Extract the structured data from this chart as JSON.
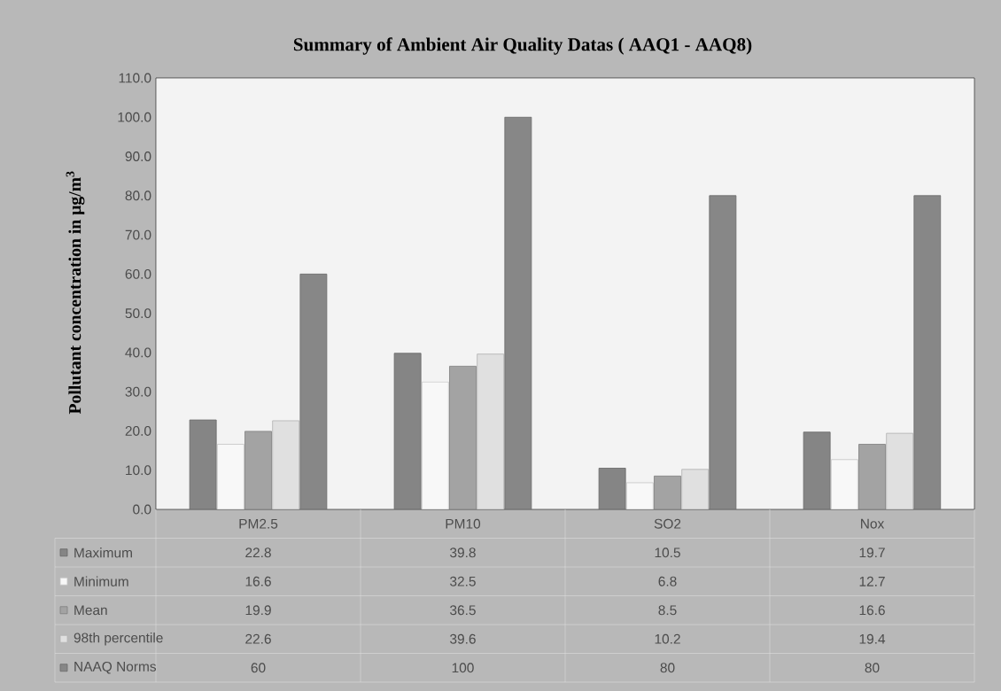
{
  "chart_data": {
    "type": "bar",
    "title": "Summary of Ambient Air Quality Datas ( AAQ1 - AAQ8)",
    "ylabel": "Pollutant  concentration  in  μg/m$^{3}$",
    "categories": [
      "PM2.5",
      "PM10",
      "SO2",
      "Nox"
    ],
    "series": [
      {
        "name": "Maximum",
        "color": "#858585",
        "values": [
          22.8,
          39.8,
          10.5,
          19.7
        ],
        "value_labels": [
          "22.8",
          "39.8",
          "10.5",
          "19.7"
        ]
      },
      {
        "name": "Minimum",
        "color": "#f8f8f8",
        "values": [
          16.6,
          32.5,
          6.8,
          12.7
        ],
        "value_labels": [
          "16.6",
          "32.5",
          "6.8",
          "12.7"
        ]
      },
      {
        "name": "Mean",
        "color": "#a3a3a3",
        "values": [
          19.9,
          36.5,
          8.5,
          16.6
        ],
        "value_labels": [
          "19.9",
          "36.5",
          "8.5",
          "16.6"
        ]
      },
      {
        "name": "98th percentile",
        "color": "#e0e0e0",
        "values": [
          22.6,
          39.6,
          10.2,
          19.4
        ],
        "value_labels": [
          "22.6",
          "39.6",
          "10.2",
          "19.4"
        ]
      },
      {
        "name": "NAAQ Norms",
        "color": "#878787",
        "values": [
          60,
          100,
          80,
          80
        ],
        "value_labels": [
          "60",
          "100",
          "80",
          "80"
        ]
      }
    ],
    "ylim": [
      0,
      110
    ],
    "yticks": [
      {
        "value": 0,
        "label": "0.0"
      },
      {
        "value": 10,
        "label": "10.0"
      },
      {
        "value": 20,
        "label": "20.0"
      },
      {
        "value": 30,
        "label": "30.0"
      },
      {
        "value": 40,
        "label": "40.0"
      },
      {
        "value": 50,
        "label": "50.0"
      },
      {
        "value": 60,
        "label": "60.0"
      },
      {
        "value": 70,
        "label": "70.0"
      },
      {
        "value": 80,
        "label": "80.0"
      },
      {
        "value": 90,
        "label": "90.0"
      },
      {
        "value": 100,
        "label": "100.0"
      },
      {
        "value": 110,
        "label": "110.0"
      }
    ],
    "grid": false,
    "legend": "bottom"
  }
}
